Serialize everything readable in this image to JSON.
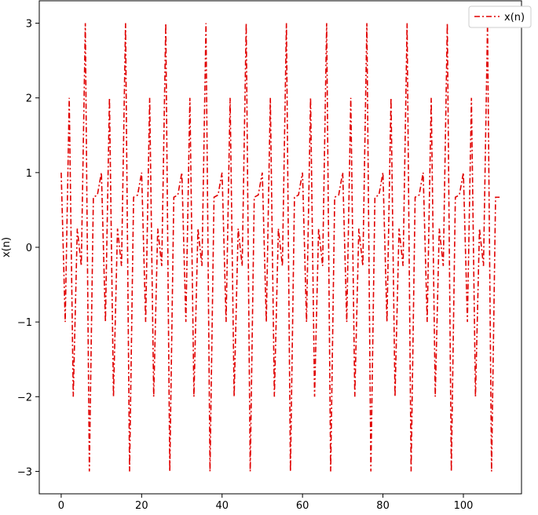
{
  "chart_data": {
    "type": "line",
    "title": "",
    "xlabel": "",
    "ylabel": "x(n)",
    "xlim": [
      -5.45,
      114.45
    ],
    "ylim": [
      -3.3,
      3.3
    ],
    "xticks": [
      0,
      20,
      40,
      60,
      80,
      100
    ],
    "yticks": [
      -3,
      -2,
      -1,
      0,
      1,
      2,
      3
    ],
    "xtick_labels": [
      "0",
      "20",
      "40",
      "60",
      "80",
      "100"
    ],
    "ytick_labels": [
      "−3",
      "−2",
      "−1",
      "0",
      "1",
      "2",
      "3"
    ],
    "grid": false,
    "legend_position": "top-right",
    "line_style": "dash-dot",
    "series": [
      {
        "name": "x(n)",
        "color": "#e00000",
        "x": [
          0,
          1,
          2,
          3,
          4,
          5,
          6,
          7,
          8,
          9,
          10,
          11,
          12,
          13,
          14,
          15,
          16,
          17,
          18,
          19,
          20,
          21,
          22,
          23,
          24,
          25,
          26,
          27,
          28,
          29,
          30,
          31,
          32,
          33,
          34,
          35,
          36,
          37,
          38,
          39,
          40,
          41,
          42,
          43,
          44,
          45,
          46,
          47,
          48,
          49,
          50,
          51,
          52,
          53,
          54,
          55,
          56,
          57,
          58,
          59,
          60,
          61,
          62,
          63,
          64,
          65,
          66,
          67,
          68,
          69,
          70,
          71,
          72,
          73,
          74,
          75,
          76,
          77,
          78,
          79,
          80,
          81,
          82,
          83,
          84,
          85,
          86,
          87,
          88,
          89,
          90,
          91,
          92,
          93,
          94,
          95,
          96,
          97,
          98,
          99,
          100,
          101,
          102,
          103,
          104,
          105,
          106,
          107,
          108,
          109
        ],
        "y": [
          1,
          -1,
          2,
          -2,
          0.25,
          -0.25,
          3,
          -3,
          0.67,
          0.7,
          1,
          -1,
          2,
          -2,
          0.25,
          -0.25,
          3,
          -3,
          0.67,
          0.7,
          1,
          -1,
          2,
          -2,
          0.25,
          -0.25,
          3,
          -3,
          0.67,
          0.7,
          1,
          -1,
          2,
          -2,
          0.25,
          -0.25,
          3,
          -3,
          0.67,
          0.7,
          1,
          -1,
          2,
          -2,
          0.25,
          -0.25,
          3,
          -3,
          0.67,
          0.7,
          1,
          -1,
          2,
          -2,
          0.25,
          -0.25,
          3,
          -3,
          0.67,
          0.7,
          1,
          -1,
          2,
          -2,
          0.25,
          -0.25,
          3,
          -3,
          0.67,
          0.7,
          1,
          -1,
          2,
          -2,
          0.25,
          -0.25,
          3,
          -3,
          0.67,
          0.7,
          1,
          -1,
          2,
          -2,
          0.25,
          -0.25,
          3,
          -3,
          0.67,
          0.7,
          1,
          -1,
          2,
          -2,
          0.25,
          -0.25,
          3,
          -3,
          0.67,
          0.7,
          1,
          -1,
          2,
          -2,
          0.25,
          -0.25,
          3,
          -3,
          0.67,
          0.67
        ]
      }
    ]
  }
}
